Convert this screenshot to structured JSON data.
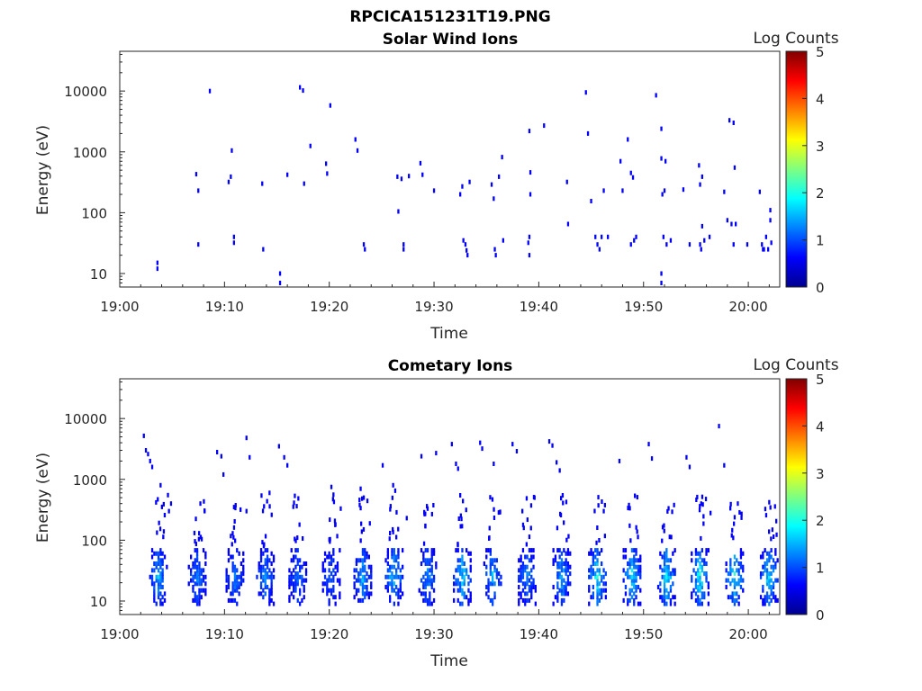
{
  "figure": {
    "title": "RPCICA151231T19.PNG"
  },
  "chart_data": [
    {
      "type": "heatmap",
      "title": "Solar Wind Ions",
      "xlabel": "Time",
      "ylabel": "Energy (eV)",
      "x_ticks": [
        "19:00",
        "19:10",
        "19:20",
        "19:30",
        "19:40",
        "19:50",
        "20:00"
      ],
      "x_tick_minutes": [
        0,
        10,
        20,
        30,
        40,
        50,
        60
      ],
      "xlim_minutes": [
        0,
        63
      ],
      "y_scale": "log",
      "y_ticks": [
        "10",
        "100",
        "1000",
        "10000"
      ],
      "y_tick_values": [
        10,
        100,
        1000,
        10000
      ],
      "ylim": [
        6,
        45000
      ],
      "colorbar": {
        "label": "Log Counts",
        "ticks": [
          "0",
          "1",
          "2",
          "3",
          "4",
          "5"
        ],
        "range": [
          0,
          5
        ],
        "colormap": "jet"
      },
      "points_minute_energy_level": [
        [
          3.5,
          15,
          0.1
        ],
        [
          3.5,
          12,
          0.1
        ],
        [
          7.2,
          430,
          0.1
        ],
        [
          7.4,
          230,
          0.1
        ],
        [
          7.4,
          30,
          0.1
        ],
        [
          8.5,
          10000,
          0.1
        ],
        [
          10.3,
          320,
          0.1
        ],
        [
          10.5,
          390,
          0.1
        ],
        [
          10.6,
          1050,
          0.1
        ],
        [
          10.8,
          40,
          0.1
        ],
        [
          10.8,
          32,
          0.1
        ],
        [
          13.5,
          300,
          0.1
        ],
        [
          13.6,
          25,
          0.1
        ],
        [
          15.2,
          10,
          0.1
        ],
        [
          15.2,
          7,
          0.1
        ],
        [
          15.9,
          420,
          0.1
        ],
        [
          17.1,
          11500,
          0.1
        ],
        [
          17.4,
          10200,
          0.1
        ],
        [
          17.5,
          300,
          0.1
        ],
        [
          18.1,
          1250,
          0.1
        ],
        [
          19.6,
          640,
          0.1
        ],
        [
          19.7,
          440,
          0.1
        ],
        [
          20.0,
          5800,
          0.1
        ],
        [
          22.4,
          1600,
          0.1
        ],
        [
          22.6,
          1050,
          0.1
        ],
        [
          23.2,
          30,
          0.1
        ],
        [
          23.3,
          25,
          0.1
        ],
        [
          26.4,
          390,
          0.1
        ],
        [
          26.5,
          105,
          0.1
        ],
        [
          26.8,
          360,
          0.1
        ],
        [
          27.0,
          30,
          0.1
        ],
        [
          27.0,
          25,
          0.1
        ],
        [
          27.5,
          400,
          0.1
        ],
        [
          28.6,
          650,
          0.1
        ],
        [
          28.8,
          420,
          0.1
        ],
        [
          29.9,
          230,
          0.1
        ],
        [
          32.4,
          200,
          0.1
        ],
        [
          32.6,
          270,
          0.1
        ],
        [
          32.7,
          35,
          0.1
        ],
        [
          32.9,
          30,
          0.1
        ],
        [
          33.0,
          24,
          0.1
        ],
        [
          33.1,
          20,
          0.1
        ],
        [
          33.3,
          320,
          0.1
        ],
        [
          35.4,
          290,
          0.1
        ],
        [
          35.6,
          170,
          0.1
        ],
        [
          35.7,
          25,
          0.1
        ],
        [
          35.8,
          20,
          0.1
        ],
        [
          36.1,
          390,
          0.1
        ],
        [
          36.4,
          820,
          0.1
        ],
        [
          36.5,
          35,
          0.1
        ],
        [
          39.0,
          2200,
          0.1
        ],
        [
          39.1,
          460,
          0.1
        ],
        [
          39.1,
          200,
          0.1
        ],
        [
          39.0,
          40,
          0.1
        ],
        [
          38.9,
          32,
          0.1
        ],
        [
          39.0,
          20,
          0.1
        ],
        [
          40.4,
          2700,
          0.1
        ],
        [
          42.6,
          320,
          0.1
        ],
        [
          42.7,
          65,
          0.1
        ],
        [
          44.4,
          9500,
          0.1
        ],
        [
          44.6,
          2000,
          0.1
        ],
        [
          44.9,
          155,
          0.1
        ],
        [
          45.3,
          40,
          0.15
        ],
        [
          45.5,
          30,
          0.15
        ],
        [
          45.7,
          25,
          0.15
        ],
        [
          45.9,
          40,
          0.15
        ],
        [
          46.1,
          230,
          0.1
        ],
        [
          46.5,
          40,
          0.1
        ],
        [
          47.7,
          700,
          0.1
        ],
        [
          47.9,
          230,
          0.1
        ],
        [
          48.4,
          1600,
          0.1
        ],
        [
          48.7,
          450,
          0.1
        ],
        [
          48.9,
          380,
          0.1
        ],
        [
          48.7,
          30,
          0.1
        ],
        [
          49.0,
          35,
          0.1
        ],
        [
          49.2,
          40,
          0.1
        ],
        [
          51.1,
          8500,
          0.1
        ],
        [
          51.6,
          2400,
          0.1
        ],
        [
          51.6,
          780,
          0.1
        ],
        [
          51.7,
          200,
          0.1
        ],
        [
          51.9,
          230,
          0.1
        ],
        [
          52.0,
          700,
          0.1
        ],
        [
          51.8,
          40,
          0.1
        ],
        [
          52.1,
          30,
          0.1
        ],
        [
          52.5,
          35,
          0.1
        ],
        [
          51.6,
          10,
          0.1
        ],
        [
          51.6,
          7,
          0.1
        ],
        [
          53.7,
          240,
          0.1
        ],
        [
          54.3,
          30,
          0.1
        ],
        [
          55.2,
          600,
          0.1
        ],
        [
          55.3,
          290,
          0.1
        ],
        [
          55.5,
          390,
          0.1
        ],
        [
          55.5,
          60,
          0.1
        ],
        [
          55.3,
          30,
          0.1
        ],
        [
          55.4,
          25,
          0.1
        ],
        [
          55.7,
          35,
          0.1
        ],
        [
          56.2,
          40,
          0.1
        ],
        [
          57.6,
          220,
          0.1
        ],
        [
          57.9,
          75,
          0.1
        ],
        [
          58.1,
          3300,
          0.1
        ],
        [
          58.3,
          65,
          0.1
        ],
        [
          58.5,
          3000,
          0.1
        ],
        [
          58.6,
          550,
          0.1
        ],
        [
          58.7,
          65,
          0.1
        ],
        [
          58.5,
          30,
          0.1
        ],
        [
          59.8,
          30,
          0.1
        ],
        [
          61.0,
          220,
          0.1
        ],
        [
          61.2,
          30,
          0.1
        ],
        [
          61.3,
          25,
          0.1
        ],
        [
          61.6,
          40,
          0.1
        ],
        [
          61.8,
          25,
          0.1
        ],
        [
          62.0,
          75,
          0.1
        ],
        [
          62.0,
          110,
          0.1
        ],
        [
          62.1,
          32,
          0.1
        ],
        [
          61.4,
          25,
          0.1
        ]
      ]
    },
    {
      "type": "heatmap",
      "title": "Cometary Ions",
      "xlabel": "Time",
      "ylabel": "Energy (eV)",
      "x_ticks": [
        "19:00",
        "19:10",
        "19:20",
        "19:30",
        "19:40",
        "19:50",
        "20:00"
      ],
      "x_tick_minutes": [
        0,
        10,
        20,
        30,
        40,
        50,
        60
      ],
      "xlim_minutes": [
        0,
        63
      ],
      "y_scale": "log",
      "y_ticks": [
        "10",
        "100",
        "1000",
        "10000"
      ],
      "y_tick_values": [
        10,
        100,
        1000,
        10000
      ],
      "ylim": [
        6,
        45000
      ],
      "colorbar": {
        "label": "Log Counts",
        "ticks": [
          "0",
          "1",
          "2",
          "3",
          "4",
          "5"
        ],
        "range": [
          0,
          5
        ],
        "colormap": "jet"
      },
      "hotspot_minutes": [
        3.6,
        7.3,
        10.9,
        13.8,
        16.9,
        20.1,
        23.1,
        26.1,
        29.3,
        32.6,
        35.5,
        38.8,
        42.1,
        45.5,
        48.8,
        52.1,
        55.3,
        58.6,
        61.9
      ],
      "hotspot_intensity": [
        1.0,
        0.7,
        0.7,
        0.8,
        0.7,
        0.6,
        1.0,
        1.1,
        0.9,
        1.2,
        1.0,
        0.8,
        1.0,
        1.4,
        1.3,
        1.3,
        1.4,
        1.4,
        1.3
      ],
      "sparse_points_minute_energy_level": [
        [
          2.2,
          5200,
          0.1
        ],
        [
          2.4,
          3000,
          0.1
        ],
        [
          2.6,
          2600,
          0.1
        ],
        [
          2.8,
          2000,
          0.1
        ],
        [
          3.0,
          1600,
          0.1
        ],
        [
          3.8,
          800,
          0.1
        ],
        [
          4.5,
          550,
          0.1
        ],
        [
          4.8,
          400,
          0.1
        ],
        [
          4.6,
          300,
          0.1
        ],
        [
          7.6,
          400,
          0.1
        ],
        [
          8.0,
          300,
          0.1
        ],
        [
          9.2,
          2800,
          0.1
        ],
        [
          9.6,
          2400,
          0.1
        ],
        [
          9.8,
          1200,
          0.1
        ],
        [
          10.8,
          350,
          0.1
        ],
        [
          12.0,
          4800,
          0.1
        ],
        [
          12.3,
          2300,
          0.1
        ],
        [
          12.0,
          300,
          0.1
        ],
        [
          14.2,
          600,
          0.1
        ],
        [
          15.1,
          3500,
          0.1
        ],
        [
          15.6,
          2300,
          0.1
        ],
        [
          15.9,
          1700,
          0.1
        ],
        [
          20.1,
          750,
          0.1
        ],
        [
          20.3,
          560,
          0.1
        ],
        [
          21.0,
          330,
          0.1
        ],
        [
          22.9,
          700,
          0.1
        ],
        [
          23.2,
          500,
          0.1
        ],
        [
          25.0,
          1700,
          0.1
        ],
        [
          26.0,
          800,
          0.1
        ],
        [
          26.2,
          650,
          0.1
        ],
        [
          27.3,
          230,
          0.1
        ],
        [
          28.7,
          2400,
          0.1
        ],
        [
          30.1,
          2700,
          0.1
        ],
        [
          31.6,
          3800,
          0.1
        ],
        [
          32.0,
          1800,
          0.1
        ],
        [
          32.2,
          1500,
          0.1
        ],
        [
          34.3,
          4000,
          0.1
        ],
        [
          34.5,
          3200,
          0.1
        ],
        [
          35.6,
          1800,
          0.1
        ],
        [
          37.4,
          3800,
          0.1
        ],
        [
          37.8,
          2900,
          0.1
        ],
        [
          39.5,
          500,
          0.1
        ],
        [
          40.9,
          4200,
          0.1
        ],
        [
          41.2,
          3600,
          0.1
        ],
        [
          41.6,
          1900,
          0.1
        ],
        [
          41.9,
          1400,
          0.1
        ],
        [
          47.6,
          2000,
          0.1
        ],
        [
          50.4,
          3800,
          0.1
        ],
        [
          50.7,
          2200,
          0.1
        ],
        [
          54.0,
          2300,
          0.1
        ],
        [
          54.3,
          1600,
          0.1
        ],
        [
          55.4,
          400,
          0.1
        ],
        [
          56.3,
          280,
          0.1
        ],
        [
          57.1,
          7500,
          0.1
        ],
        [
          57.6,
          1700,
          0.1
        ],
        [
          58.9,
          400,
          0.1
        ],
        [
          61.9,
          420,
          0.1
        ]
      ]
    }
  ]
}
